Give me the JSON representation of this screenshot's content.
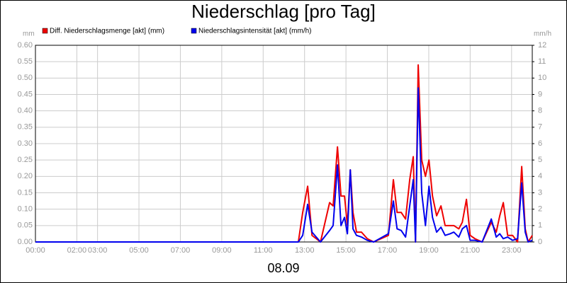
{
  "chart_data": {
    "type": "line",
    "title": "Niederschlag [pro Tag]",
    "xlabel": "08.09",
    "ylabel": "mm",
    "y2label": "mm/h",
    "x": [
      0,
      12.7,
      12.91,
      13.15,
      13.36,
      13.77,
      14.21,
      14.38,
      14.59,
      14.76,
      14.93,
      15.07,
      15.21,
      15.34,
      15.51,
      15.75,
      16.03,
      16.34,
      17.05,
      17.29,
      17.47,
      17.67,
      17.88,
      18.08,
      18.25,
      18.36,
      18.49,
      18.66,
      18.84,
      19.01,
      19.18,
      19.38,
      19.59,
      19.79,
      20.03,
      20.21,
      20.45,
      20.62,
      20.82,
      21.0,
      21.23,
      21.58,
      22.02,
      22.26,
      22.43,
      22.6,
      22.81,
      23.05,
      23.29,
      23.49,
      23.66,
      23.8,
      24
    ],
    "series": [
      {
        "name": "Diff. Niederschlagsmenge [akt] (mm)",
        "color": "#ee0000",
        "values": [
          0,
          0,
          0.09,
          0.17,
          0.02,
          0,
          0.12,
          0.11,
          0.29,
          0.14,
          0.14,
          0.05,
          0.22,
          0.09,
          0.03,
          0.03,
          0.01,
          0,
          0.02,
          0.19,
          0.09,
          0.09,
          0.07,
          0.19,
          0.26,
          0,
          0.54,
          0.25,
          0.2,
          0.25,
          0.14,
          0.08,
          0.11,
          0.05,
          0.05,
          0.05,
          0.04,
          0.06,
          0.13,
          0.02,
          0.01,
          0,
          0.06,
          0.03,
          0.08,
          0.12,
          0.02,
          0.02,
          0,
          0.23,
          0.04,
          0,
          0.02
        ]
      },
      {
        "name": "Niederschlagsintensität [akt] (mm/h)",
        "color": "#0000ee",
        "axis": "y2",
        "values": [
          0,
          0,
          0.4,
          2.3,
          0.6,
          0,
          0.7,
          1.0,
          4.7,
          1.0,
          1.5,
          0.5,
          4.4,
          0.8,
          0.4,
          0.3,
          0.1,
          0,
          0.5,
          2.5,
          0.8,
          0.7,
          0.3,
          2.2,
          3.8,
          0,
          9.4,
          3,
          1.0,
          3.4,
          1.5,
          0.6,
          0.9,
          0.4,
          0.5,
          0.6,
          0.3,
          0.8,
          1.0,
          0.1,
          0.1,
          0,
          1.4,
          0.3,
          0.5,
          0.2,
          0.3,
          0.1,
          0.2,
          3.6,
          0.6,
          0,
          0.1
        ]
      }
    ],
    "xlim": [
      0,
      24
    ],
    "xticks": [
      {
        "value": 0,
        "label": "00:00"
      },
      {
        "value": 2,
        "label": "02:00"
      },
      {
        "value": 3,
        "label": "03:00"
      },
      {
        "value": 5,
        "label": "05:00"
      },
      {
        "value": 7,
        "label": "07:00"
      },
      {
        "value": 9,
        "label": "09:00"
      },
      {
        "value": 11,
        "label": "11:00"
      },
      {
        "value": 13,
        "label": "13:00"
      },
      {
        "value": 15,
        "label": "15:00"
      },
      {
        "value": 17,
        "label": "17:00"
      },
      {
        "value": 19,
        "label": "19:00"
      },
      {
        "value": 21,
        "label": "21:00"
      },
      {
        "value": 23,
        "label": "23:00"
      }
    ],
    "ylim": [
      0,
      0.6
    ],
    "yticks": [
      {
        "value": 0,
        "label": "0.00"
      },
      {
        "value": 0.05,
        "label": "0.05"
      },
      {
        "value": 0.1,
        "label": "0.10"
      },
      {
        "value": 0.15,
        "label": "0.15"
      },
      {
        "value": 0.2,
        "label": "0.20"
      },
      {
        "value": 0.25,
        "label": "0.25"
      },
      {
        "value": 0.3,
        "label": "0.30"
      },
      {
        "value": 0.35,
        "label": "0.35"
      },
      {
        "value": 0.4,
        "label": "0.40"
      },
      {
        "value": 0.45,
        "label": "0.45"
      },
      {
        "value": 0.5,
        "label": "0.50"
      },
      {
        "value": 0.55,
        "label": "0.55"
      },
      {
        "value": 0.6,
        "label": "0.60"
      }
    ],
    "y2lim": [
      0,
      12
    ],
    "y2ticks": [
      0,
      1,
      2,
      3,
      4,
      5,
      6,
      7,
      8,
      9,
      10,
      11,
      12
    ],
    "grid": true
  }
}
